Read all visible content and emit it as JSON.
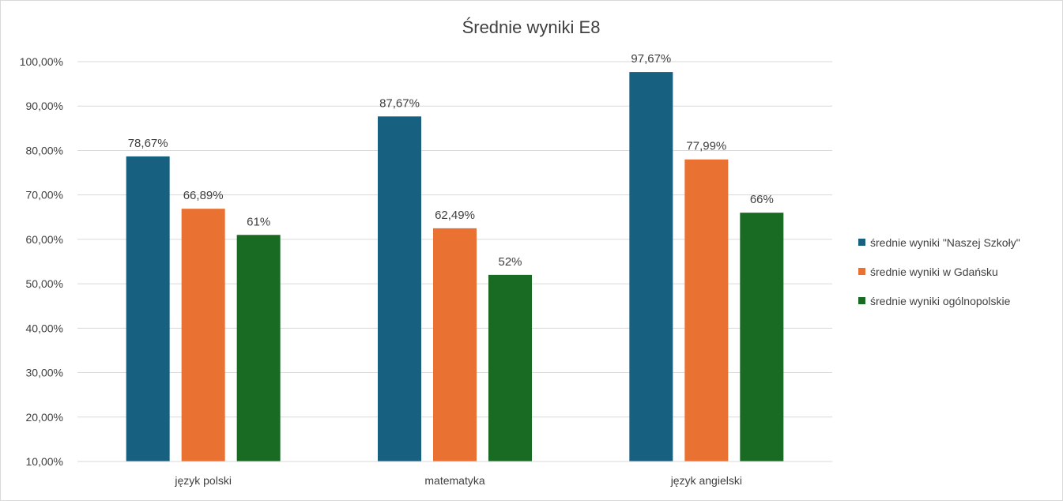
{
  "chart_data": {
    "type": "bar",
    "title": "Średnie wyniki E8",
    "xlabel": "",
    "ylabel": "",
    "categories": [
      "język polski",
      "matematyka",
      "język angielski"
    ],
    "series": [
      {
        "name": "średnie wyniki \"Naszej Szkoły\"",
        "color": "#17607f",
        "values": [
          78.67,
          87.67,
          97.67
        ],
        "labels": [
          "78,67%",
          "87,67%",
          "97,67%"
        ]
      },
      {
        "name": "średnie wyniki w Gdańsku",
        "color": "#e97132",
        "values": [
          66.89,
          62.49,
          77.99
        ],
        "labels": [
          "66,89%",
          "62,49%",
          "77,99%"
        ]
      },
      {
        "name": "średnie wyniki ogólnopolskie",
        "color": "#196b24",
        "values": [
          61,
          52,
          66
        ],
        "labels": [
          "61%",
          "52%",
          "66%"
        ]
      }
    ],
    "ylim": [
      10,
      100
    ],
    "yticks": [
      10,
      20,
      30,
      40,
      50,
      60,
      70,
      80,
      90,
      100
    ],
    "ytick_labels": [
      "10,00%",
      "20,00%",
      "30,00%",
      "40,00%",
      "50,00%",
      "60,00%",
      "70,00%",
      "80,00%",
      "90,00%",
      "100,00%"
    ],
    "grid": true,
    "legend_position": "right"
  }
}
